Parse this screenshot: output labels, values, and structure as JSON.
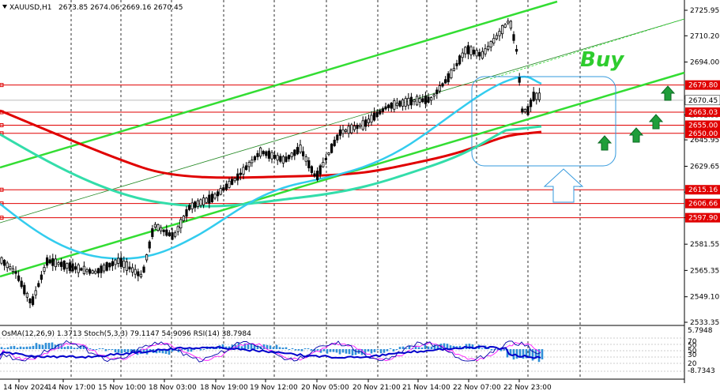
{
  "header": {
    "symbol": "XAUUSD,H1",
    "ohlc": "2673.85 2674.06 2669.16 2670.45"
  },
  "price_axis": [
    "2725.95",
    "2710.20",
    "2694.00",
    "2661.35",
    "2645.95",
    "2629.65",
    "2613.70",
    "2597.90",
    "2581.55",
    "2565.35",
    "2549.10",
    "2533.35"
  ],
  "price_axis_values": [
    2725.95,
    2710.2,
    2694.0,
    2661.35,
    2645.95,
    2629.65,
    2613.7,
    2597.9,
    2581.55,
    2565.35,
    2549.1,
    2533.35
  ],
  "current_price": {
    "label": "2670.45",
    "value": 2670.45
  },
  "levels": [
    {
      "label": "2679.80",
      "value": 2679.8
    },
    {
      "label": "2663.03",
      "value": 2663.03
    },
    {
      "label": "2655.00",
      "value": 2655.0
    },
    {
      "label": "2650.00",
      "value": 2650.0
    },
    {
      "label": "2615.16",
      "value": 2615.16
    },
    {
      "label": "2606.66",
      "value": 2606.66
    },
    {
      "label": "2597.90",
      "value": 2597.9
    }
  ],
  "annotation": {
    "buy_label": "Buy"
  },
  "oscillator": {
    "header": "OsMA(12,26,9) 1.3713  Stoch(5,3,3) 79.1147 54.9096  RSI(14) 38.7984",
    "scale": [
      "5.7948",
      "70",
      "50",
      "50",
      "30",
      "20",
      "-8.7343"
    ]
  },
  "time_axis": [
    "14 Nov 2024",
    "14 Nov 17:00",
    "15 Nov 10:00",
    "18 Nov 03:00",
    "18 Nov 19:00",
    "19 Nov 12:00",
    "20 Nov 05:00",
    "20 Nov 21:00",
    "21 Nov 14:00",
    "22 Nov 07:00",
    "22 Nov 23:00"
  ],
  "colors": {
    "up_candle": "#000000",
    "ma_red": "#e00000",
    "ma_cyan": "#33ccee",
    "ma_teal": "#33ddaa",
    "channel_green": "#33dd33",
    "level_red": "#e00000",
    "arrow_green": "#1f9e3a",
    "osma_bar": "#2f8fd8",
    "stoch_main": "#0000aa",
    "stoch_signal": "#ff00ff"
  }
}
